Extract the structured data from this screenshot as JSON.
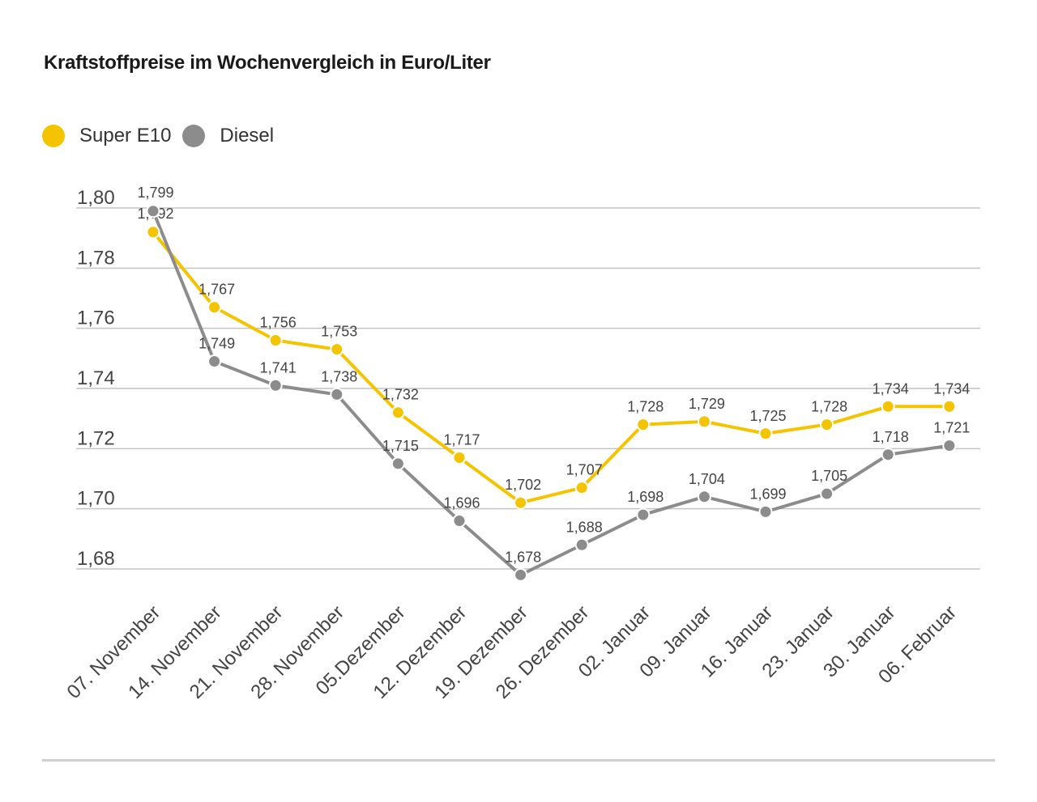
{
  "title": "Kraftstoffpreise im Wochenvergleich in Euro/Liter",
  "colors": {
    "super_e10": "#f5c400",
    "diesel": "#8c8c8c",
    "grid": "#c4c4c4"
  },
  "chart_data": {
    "type": "line",
    "title": "Kraftstoffpreise im Wochenvergleich in Euro/Liter",
    "xlabel": "",
    "ylabel": "",
    "categories": [
      "07. November",
      "14. November",
      "21. November",
      "28. November",
      "05.Dezember",
      "12. Dezember",
      "19. Dezember",
      "26. Dezember",
      "02. Januar",
      "09. Januar",
      "16. Januar",
      "23. Januar",
      "30. Januar",
      "06. Februar"
    ],
    "series": [
      {
        "name": "Super E10",
        "values": [
          1.792,
          1.767,
          1.756,
          1.753,
          1.732,
          1.717,
          1.702,
          1.707,
          1.728,
          1.729,
          1.725,
          1.728,
          1.734,
          1.734
        ],
        "labels": [
          "1,792",
          "1,767",
          "1,756",
          "1,753",
          "1,732",
          "1,717",
          "1,702",
          "1,707",
          "1,728",
          "1,729",
          "1,725",
          "1,728",
          "1,734",
          "1,734"
        ]
      },
      {
        "name": "Diesel",
        "values": [
          1.799,
          1.749,
          1.741,
          1.738,
          1.715,
          1.696,
          1.678,
          1.688,
          1.698,
          1.704,
          1.699,
          1.705,
          1.718,
          1.721
        ],
        "labels": [
          "1,799",
          "1,749",
          "1,741",
          "1,738",
          "1,715",
          "1,696",
          "1,678",
          "1,688",
          "1,698",
          "1,704",
          "1,699",
          "1,705",
          "1,718",
          "1,721"
        ]
      }
    ],
    "yticks": [
      1.68,
      1.7,
      1.72,
      1.74,
      1.76,
      1.78,
      1.8
    ],
    "ytick_labels": [
      "1,68",
      "1,70",
      "1,72",
      "1,74",
      "1,76",
      "1,78",
      "1,80"
    ],
    "ylim": [
      1.68,
      1.8
    ],
    "grid": true,
    "legend_position": "top-left"
  }
}
